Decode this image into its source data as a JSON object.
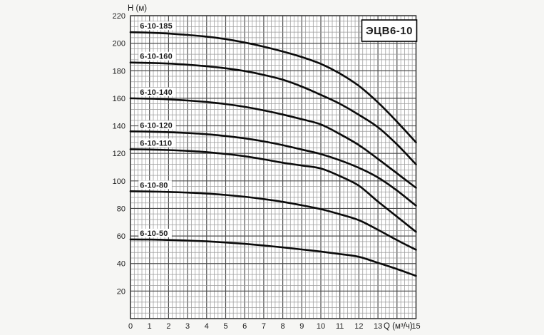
{
  "title_box": {
    "label": "ЭЦВ6-10"
  },
  "axes": {
    "y": {
      "title": "Н (м)",
      "tick_values": [
        220,
        200,
        180,
        160,
        140,
        120,
        100,
        80,
        60,
        40,
        20
      ],
      "min": 0,
      "max": 220
    },
    "x": {
      "title": "Q (м³/ч)",
      "tick_values": [
        0,
        1,
        2,
        3,
        4,
        5,
        6,
        7,
        8,
        9,
        10,
        11,
        12,
        13,
        15
      ],
      "min": 0,
      "max": 15,
      "title_at": 14
    }
  },
  "chart_data": {
    "type": "line",
    "title": "ЭЦВ6-10",
    "xlabel": "Q (м³/ч)",
    "ylabel": "Н (м)",
    "xlim": [
      0,
      15
    ],
    "ylim": [
      0,
      220
    ],
    "grid": "fine graph paper: minor x step 0.2, major x step 1; minor y step 4, major y step 20",
    "legend_position": "labels above left end of each curve",
    "x": [
      0,
      1,
      2,
      3,
      4,
      5,
      6,
      7,
      8,
      9,
      10,
      11,
      12,
      13,
      14,
      15
    ],
    "series": [
      {
        "name": "6-10-185",
        "values": [
          208,
          207.7,
          207,
          206,
          204.8,
          203,
          200.5,
          197.5,
          194,
          190,
          185,
          178,
          169,
          157,
          143,
          128
        ]
      },
      {
        "name": "6-10-160",
        "values": [
          186,
          185.7,
          185.2,
          184.4,
          183.3,
          181.8,
          179.8,
          177,
          173.5,
          168.5,
          162.5,
          156,
          148,
          139,
          126.5,
          112
        ]
      },
      {
        "name": "6-10-140",
        "values": [
          160,
          159.7,
          159.2,
          158.4,
          157.3,
          155.8,
          153.8,
          151.2,
          148.2,
          144.8,
          141,
          134,
          126,
          116,
          105.5,
          95
        ]
      },
      {
        "name": "6-10-120",
        "values": [
          136,
          135.8,
          135.4,
          134.8,
          133.9,
          132.6,
          130.9,
          128.7,
          126,
          122.8,
          119.5,
          115,
          109.5,
          102.5,
          93,
          82
        ]
      },
      {
        "name": "6-10-110",
        "values": [
          123,
          122.8,
          122.4,
          121.8,
          120.9,
          119.6,
          117.9,
          115.7,
          113.2,
          111.2,
          109,
          103.5,
          96.5,
          85,
          74,
          63
        ]
      },
      {
        "name": "6-10-80",
        "values": [
          92.5,
          92.3,
          92,
          91.5,
          90.8,
          89.8,
          88.5,
          86.8,
          84.8,
          82.3,
          79.5,
          75.8,
          71.5,
          64.5,
          57,
          50
        ]
      },
      {
        "name": "6-10-50",
        "values": [
          57.5,
          57.4,
          57.1,
          56.7,
          56.1,
          55.3,
          54.3,
          53.1,
          51.7,
          50.2,
          48.7,
          46.9,
          44.9,
          40.5,
          36,
          31
        ]
      }
    ]
  },
  "colors": {
    "curve": "#0b0b0b",
    "grid_minor": "#9c9c9c",
    "grid_major": "#4d4d4d",
    "plot_border": "#3a3a3a",
    "text": "#1c1c1c",
    "plot_bg": "#ffffff",
    "page_bg": "#f6f6f4",
    "label_bg": "#ffffff"
  }
}
